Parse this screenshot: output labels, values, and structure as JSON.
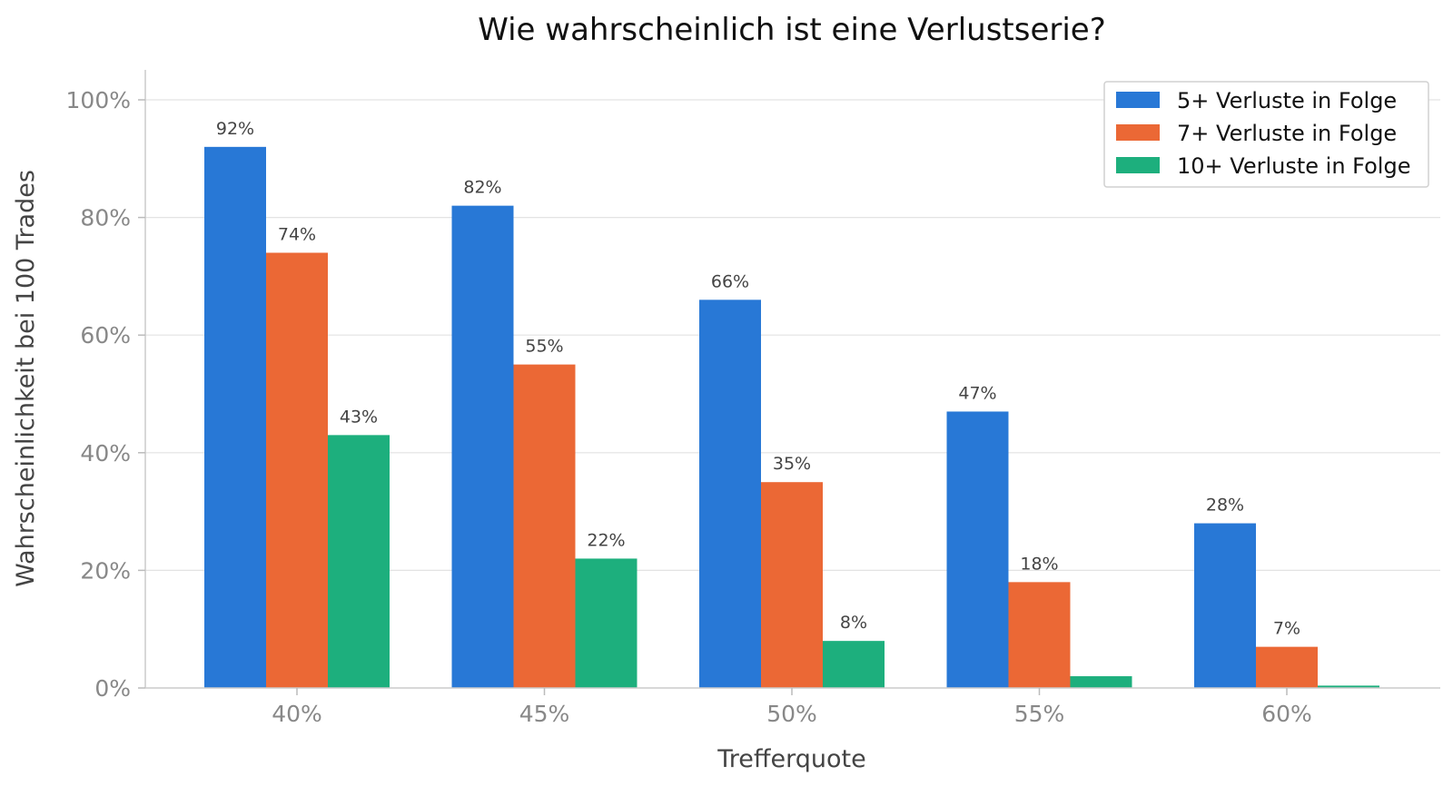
{
  "chart_data": {
    "type": "bar",
    "title": "Wie wahrscheinlich ist eine Verlustserie?",
    "xlabel": "Trefferquote",
    "ylabel": "Wahrscheinlichkeit bei 100 Trades",
    "categories": [
      "40%",
      "45%",
      "50%",
      "55%",
      "60%"
    ],
    "ylim": [
      0,
      105
    ],
    "yticks": [
      0,
      20,
      40,
      60,
      80,
      100
    ],
    "ytick_labels": [
      "0%",
      "20%",
      "40%",
      "60%",
      "80%",
      "100%"
    ],
    "grid": "horizontal",
    "legend_position": "top-right",
    "series": [
      {
        "name": "5+ Verluste in Folge",
        "color": "#2878d6",
        "values": [
          92,
          82,
          66,
          47,
          28
        ],
        "labels": [
          "92%",
          "82%",
          "66%",
          "47%",
          "28%"
        ]
      },
      {
        "name": "7+ Verluste in Folge",
        "color": "#eb6835",
        "values": [
          74,
          55,
          35,
          18,
          7
        ],
        "labels": [
          "74%",
          "55%",
          "35%",
          "18%",
          "7%"
        ]
      },
      {
        "name": "10+ Verluste in Folge",
        "color": "#1daf7d",
        "values": [
          43,
          22,
          8,
          2,
          0.4
        ],
        "labels": [
          "43%",
          "22%",
          "8%",
          "",
          ""
        ]
      }
    ]
  }
}
